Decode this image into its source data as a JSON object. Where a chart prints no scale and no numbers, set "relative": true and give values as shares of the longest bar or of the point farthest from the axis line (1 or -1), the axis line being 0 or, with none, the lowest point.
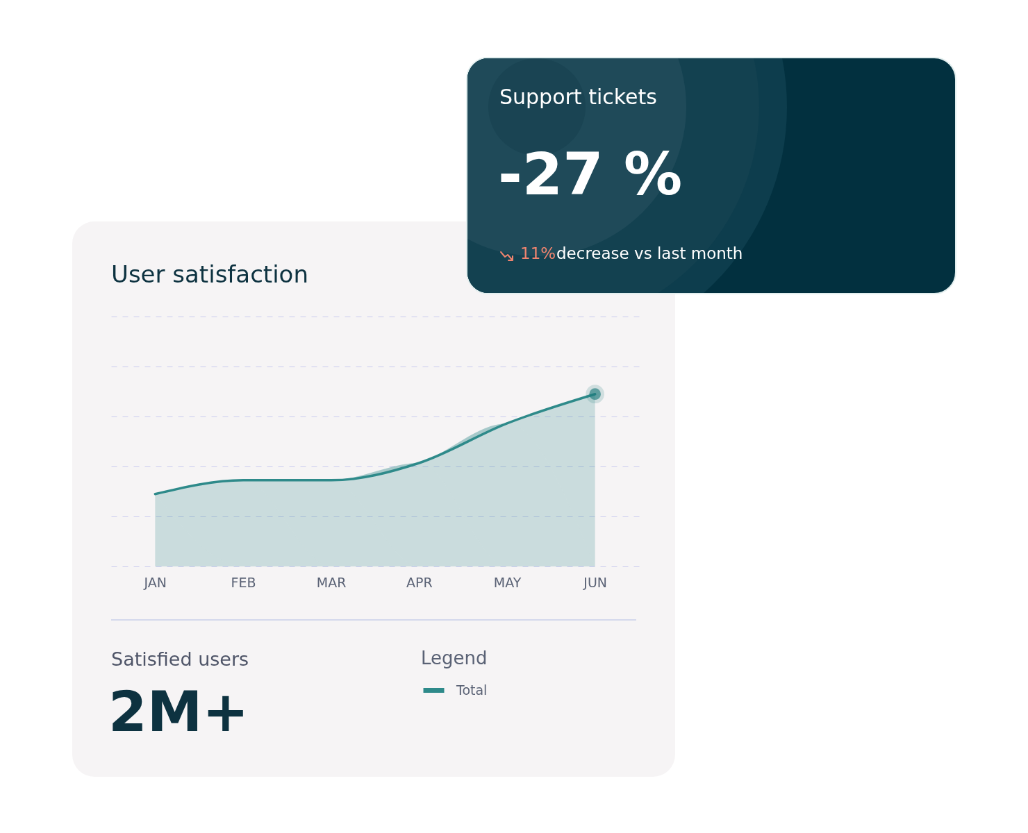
{
  "chart_data": [
    {
      "type": "area",
      "title": "User satisfaction",
      "relative": true,
      "categories": [
        "JAN",
        "FEB",
        "MAR",
        "APR",
        "MAY",
        "JUN"
      ],
      "grid": "y",
      "legend": "bottom right",
      "legend_title": "Legend",
      "series": [
        {
          "name": "Total",
          "color": "#2e8a8a",
          "values": [
            0.42,
            0.5,
            0.5,
            0.6,
            0.83,
            1
          ]
        },
        {
          "type": "scatter",
          "color": "#1e7b7c",
          "x": [
            "JUN"
          ],
          "values": [
            1
          ]
        }
      ],
      "annotations": [
        "Satisfied users",
        "2M+"
      ]
    },
    {
      "type": "other",
      "title": "Support tickets",
      "annotations": [
        "-27 %",
        "11%",
        "decrease vs last month"
      ]
    }
  ]
}
